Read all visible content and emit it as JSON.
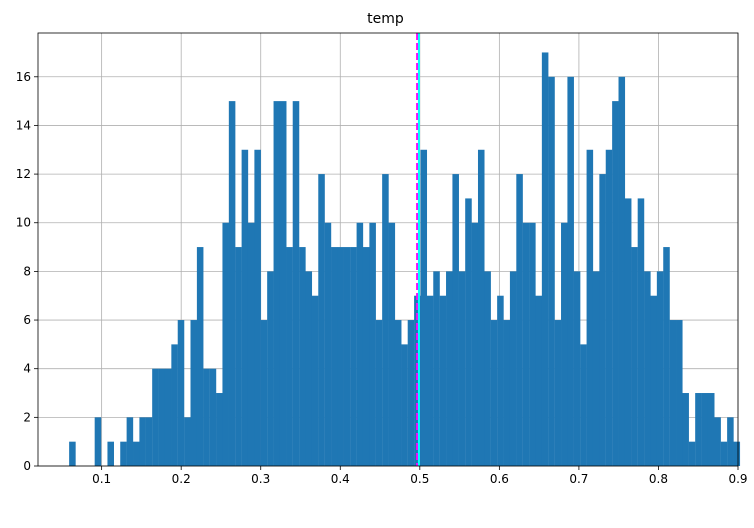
{
  "chart_data": {
    "type": "bar",
    "title": "temp",
    "xlabel": "",
    "ylabel": "",
    "xlim": [
      0.02,
      0.9
    ],
    "ylim": [
      0,
      17.8
    ],
    "grid": true,
    "bins": {
      "start": 0.05913,
      "width": 0.008031,
      "counts": [
        1,
        0,
        0,
        0,
        2,
        0,
        1,
        0,
        1,
        2,
        1,
        2,
        2,
        4,
        4,
        4,
        5,
        6,
        2,
        6,
        9,
        4,
        4,
        3,
        10,
        15,
        9,
        13,
        10,
        13,
        6,
        8,
        15,
        15,
        9,
        15,
        9,
        8,
        7,
        12,
        10,
        9,
        9,
        9,
        9,
        10,
        9,
        10,
        6,
        12,
        10,
        6,
        5,
        6,
        7,
        13,
        7,
        8,
        7,
        8,
        12,
        8,
        11,
        10,
        13,
        8,
        6,
        7,
        6,
        8,
        12,
        10,
        10,
        7,
        17,
        16,
        6,
        10,
        16,
        8,
        5,
        13,
        8,
        12,
        13,
        15,
        16,
        11,
        9,
        11,
        8,
        7,
        8,
        9,
        6,
        6,
        3,
        1,
        3,
        3,
        3,
        2,
        1,
        2,
        1
      ]
    },
    "xticks": [
      0.1,
      0.2,
      0.3,
      0.4,
      0.5,
      0.6,
      0.7,
      0.8,
      0.9
    ],
    "yticks": [
      0,
      2,
      4,
      6,
      8,
      10,
      12,
      14,
      16
    ],
    "vlines": [
      {
        "x": 0.4966,
        "color": "#ff00ff",
        "style": "dashed"
      },
      {
        "x": 0.4989,
        "color": "#00ffff",
        "style": "solid"
      }
    ],
    "colors": {
      "bar": "#1f77b4",
      "grid": "#b0b0b0"
    }
  }
}
